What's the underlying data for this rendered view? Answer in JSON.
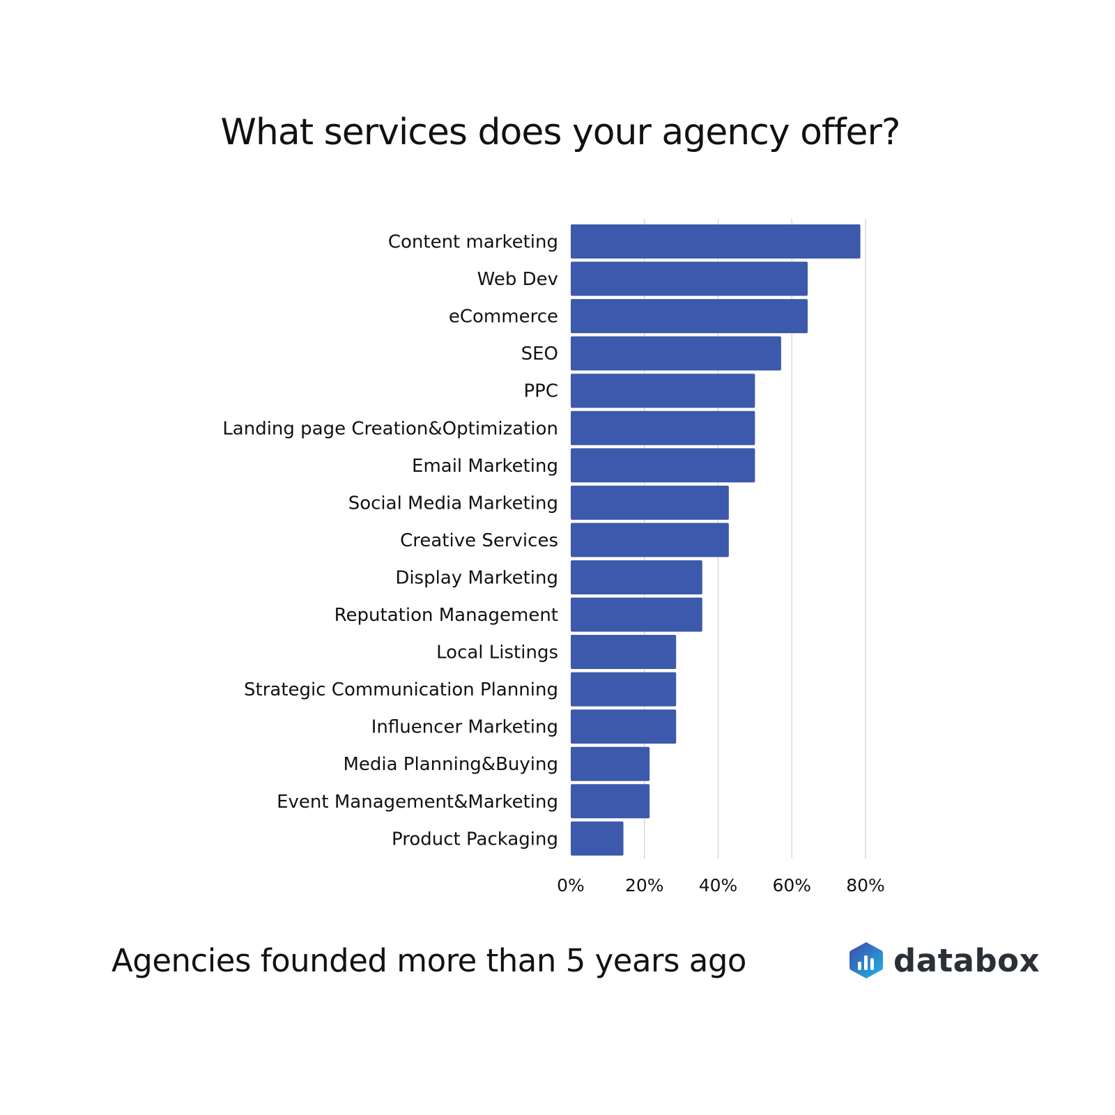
{
  "chart_data": {
    "type": "bar",
    "orientation": "horizontal",
    "title": "What services does your agency offer?",
    "subtitle": "Agencies founded more than 5 years ago",
    "categories": [
      "Content marketing",
      "Web Dev",
      "eCommerce",
      "SEO",
      "PPC",
      "Landing page Creation&Optimization",
      "Email Marketing",
      "Social Media Marketing",
      "Creative Services",
      "Display Marketing",
      "Reputation Management",
      "Local Listings",
      "Strategic Communication Planning",
      "Influencer Marketing",
      "Media Planning&Buying",
      "Event Management&Marketing",
      "Product Packaging"
    ],
    "values": [
      78.6,
      64.3,
      64.3,
      57.1,
      50.0,
      50.0,
      50.0,
      42.9,
      42.9,
      35.7,
      35.7,
      28.6,
      28.6,
      28.6,
      21.4,
      21.4,
      14.3
    ],
    "xlim": [
      0,
      80
    ],
    "xticks": [
      0,
      20,
      40,
      60,
      80
    ],
    "xtick_labels": [
      "0%",
      "20%",
      "40%",
      "60%",
      "80%"
    ],
    "grid": true,
    "bar_color": "#3d59ab",
    "grid_color": "#d9d9d9"
  },
  "brand": {
    "name": "databox",
    "colors": [
      "#3f48a8",
      "#1fa0e0"
    ]
  }
}
